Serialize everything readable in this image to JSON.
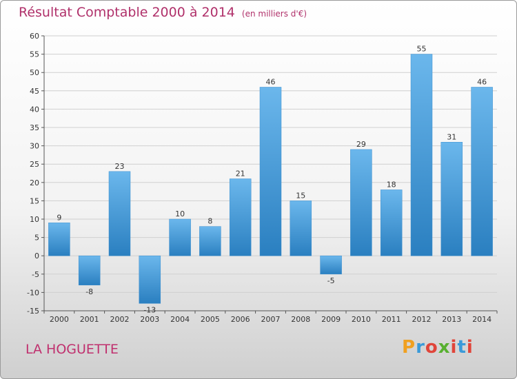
{
  "title": "Résultat Comptable 2000 à 2014",
  "subtitle": "(en milliers d'€)",
  "commune": "LA HOGUETTE",
  "logo": {
    "letters": [
      "P",
      "r",
      "o",
      "x",
      "i",
      "t",
      "i"
    ],
    "colors": [
      "#f0a020",
      "#3a9ad9",
      "#e0453a",
      "#58b030",
      "#e0453a",
      "#3a9ad9",
      "#e0453a"
    ]
  },
  "colors": {
    "bar_top": "#6bb7ec",
    "bar_bottom": "#2a7fc0",
    "grid": "#d0d0d0"
  },
  "chart_data": {
    "type": "bar",
    "title": "Résultat Comptable 2000 à 2014",
    "subtitle": "(en milliers d'€)",
    "categories": [
      "2000",
      "2001",
      "2002",
      "2003",
      "2004",
      "2005",
      "2006",
      "2007",
      "2008",
      "2009",
      "2010",
      "2011",
      "2012",
      "2013",
      "2014"
    ],
    "values": [
      9,
      -8,
      23,
      -13,
      10,
      8,
      21,
      46,
      15,
      -5,
      29,
      18,
      55,
      31,
      46
    ],
    "ylim": [
      -15,
      60
    ],
    "yticks": [
      -15,
      -10,
      -5,
      0,
      5,
      10,
      15,
      20,
      25,
      30,
      35,
      40,
      45,
      50,
      55,
      60
    ],
    "grid": true
  }
}
